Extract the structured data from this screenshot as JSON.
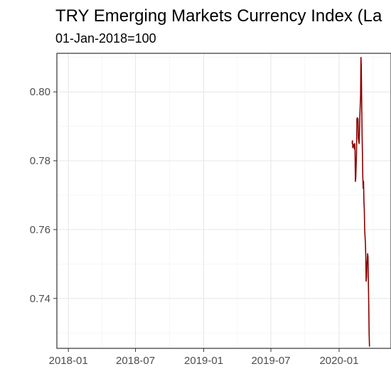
{
  "chart_data": {
    "type": "line",
    "title": "TRY Emerging Markets Currency Index (La",
    "subtitle": "01-Jan-2018=100",
    "xlabel": "",
    "ylabel": "",
    "x_ticks": [
      "2018-01",
      "2018-07",
      "2019-01",
      "2019-07",
      "2020-01"
    ],
    "y_ticks": [
      "0.74",
      "0.76",
      "0.78",
      "0.80"
    ],
    "xlim": [
      "2017-12-01",
      "2020-05-20"
    ],
    "ylim": [
      0.7255,
      0.8112
    ],
    "grid": true,
    "legend": "none",
    "series": [
      {
        "color": "#8b0000",
        "points": [
          [
            "2020-02-05",
            0.785
          ],
          [
            "2020-02-06",
            0.7858
          ],
          [
            "2020-02-07",
            0.7838
          ],
          [
            "2020-02-08",
            0.7848
          ],
          [
            "2020-02-10",
            0.7845
          ],
          [
            "2020-02-11",
            0.7835
          ],
          [
            "2020-02-12",
            0.785
          ],
          [
            "2020-02-13",
            0.783
          ],
          [
            "2020-02-14",
            0.774
          ],
          [
            "2020-02-15",
            0.775
          ],
          [
            "2020-02-17",
            0.782
          ],
          [
            "2020-02-18",
            0.792
          ],
          [
            "2020-02-19",
            0.7925
          ],
          [
            "2020-02-20",
            0.7918
          ],
          [
            "2020-02-21",
            0.7922
          ],
          [
            "2020-02-22",
            0.7865
          ],
          [
            "2020-02-24",
            0.785
          ],
          [
            "2020-02-25",
            0.788
          ],
          [
            "2020-02-26",
            0.793
          ],
          [
            "2020-02-27",
            0.796
          ],
          [
            "2020-02-28",
            0.799
          ],
          [
            "2020-02-29",
            0.81
          ],
          [
            "2020-03-01",
            0.807
          ],
          [
            "2020-03-02",
            0.796
          ],
          [
            "2020-03-03",
            0.788
          ],
          [
            "2020-03-04",
            0.782
          ],
          [
            "2020-03-05",
            0.775
          ],
          [
            "2020-03-06",
            0.772
          ],
          [
            "2020-03-07",
            0.774
          ],
          [
            "2020-03-08",
            0.768
          ],
          [
            "2020-03-09",
            0.766
          ],
          [
            "2020-03-10",
            0.76
          ],
          [
            "2020-03-11",
            0.758
          ],
          [
            "2020-03-12",
            0.756
          ],
          [
            "2020-03-13",
            0.752
          ],
          [
            "2020-03-14",
            0.745
          ],
          [
            "2020-03-15",
            0.746
          ],
          [
            "2020-03-16",
            0.75
          ],
          [
            "2020-03-17",
            0.751
          ],
          [
            "2020-03-18",
            0.753
          ],
          [
            "2020-03-19",
            0.752
          ],
          [
            "2020-03-20",
            0.745
          ],
          [
            "2020-03-21",
            0.738
          ],
          [
            "2020-03-22",
            0.73
          ],
          [
            "2020-03-23",
            0.726
          ]
        ]
      }
    ]
  }
}
